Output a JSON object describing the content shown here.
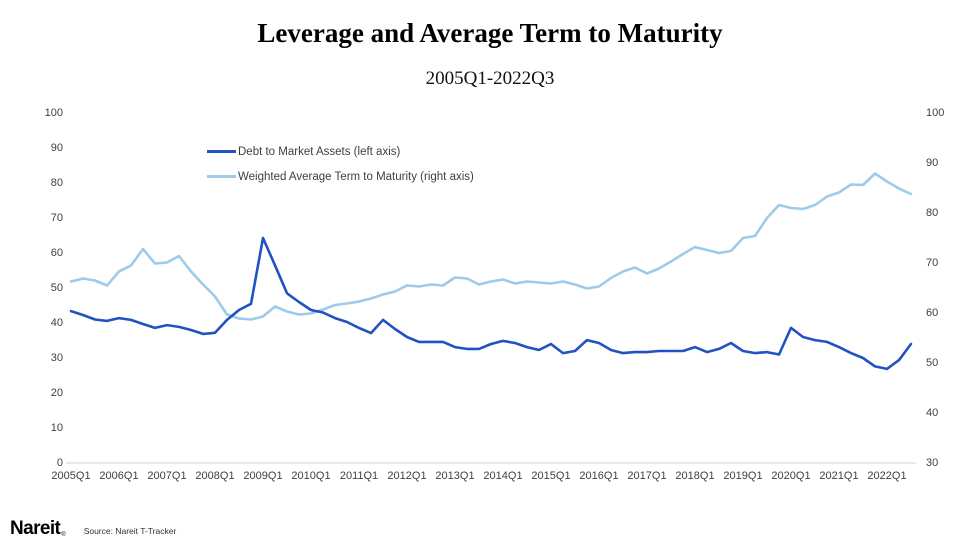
{
  "title": "Leverage and Average Term to Maturity",
  "subtitle": "2005Q1-2022Q3",
  "legend": {
    "items": [
      {
        "label": "Debt to Market Assets (left axis)",
        "color": "#2151c2"
      },
      {
        "label": "Weighted Average Term to Maturity (right axis)",
        "color": "#9dcbe9"
      }
    ]
  },
  "footer": {
    "logo_text": "Nareit",
    "registered_mark": "®",
    "source_text": "Source: Nareit T-Tracker"
  },
  "chart_data": {
    "type": "line",
    "title": "Leverage and Average Term to Maturity",
    "subtitle": "2005Q1-2022Q3",
    "x_start": "2005Q1",
    "x_end": "2022Q3",
    "x_interval": "quarter",
    "x_tick_labels": [
      "2005Q1",
      "2006Q1",
      "2007Q1",
      "2008Q1",
      "2009Q1",
      "2010Q1",
      "2011Q1",
      "2012Q1",
      "2013Q1",
      "2014Q1",
      "2015Q1",
      "2016Q1",
      "2017Q1",
      "2018Q1",
      "2019Q1",
      "2020Q1",
      "2021Q1",
      "2022Q1"
    ],
    "left_axis": {
      "ticks": [
        100,
        90,
        80,
        70,
        60,
        50,
        40,
        30,
        20,
        10,
        0
      ],
      "min": 0,
      "max": 100
    },
    "right_axis": {
      "ticks": [
        100,
        90,
        80,
        70,
        60,
        50,
        40,
        30
      ],
      "min": 30,
      "max": 100
    },
    "grid": false,
    "legend_position": "top-left-inside",
    "series": [
      {
        "name": "Debt to Market Assets (left axis)",
        "axis": "left",
        "color": "#2151c2",
        "values": [
          43.4,
          42.3,
          41.0,
          40.6,
          41.4,
          40.9,
          39.7,
          38.6,
          39.4,
          38.9,
          38.0,
          36.9,
          37.2,
          40.9,
          43.7,
          45.5,
          64.3,
          56.5,
          48.5,
          46.0,
          43.7,
          43.0,
          41.4,
          40.3,
          38.6,
          37.1,
          40.9,
          38.3,
          36.0,
          34.6,
          34.6,
          34.6,
          33.1,
          32.6,
          32.6,
          34.0,
          34.9,
          34.3,
          33.1,
          32.3,
          34.0,
          31.4,
          32.0,
          35.1,
          34.3,
          32.3,
          31.4,
          31.7,
          31.7,
          32.0,
          32.0,
          32.0,
          33.1,
          31.7,
          32.6,
          34.3,
          32.0,
          31.4,
          31.7,
          31.0,
          38.6,
          36.0,
          35.1,
          34.6,
          33.1,
          31.4,
          30.0,
          27.6,
          26.9,
          29.4,
          34.0
        ]
      },
      {
        "name": "Weighted Average Term to Maturity (right axis)",
        "axis": "right",
        "color": "#9dcbe9",
        "values": [
          66.3,
          66.9,
          66.5,
          65.5,
          68.3,
          69.5,
          72.8,
          69.9,
          70.1,
          71.4,
          68.3,
          65.7,
          63.3,
          59.7,
          58.9,
          58.7,
          59.3,
          61.3,
          60.3,
          59.7,
          59.9,
          60.7,
          61.6,
          61.9,
          62.3,
          62.9,
          63.7,
          64.3,
          65.5,
          65.3,
          65.7,
          65.5,
          67.1,
          66.9,
          65.7,
          66.3,
          66.7,
          65.9,
          66.3,
          66.1,
          65.9,
          66.3,
          65.7,
          64.9,
          65.3,
          67.0,
          68.3,
          69.1,
          67.9,
          68.9,
          70.3,
          71.8,
          73.2,
          72.6,
          72.0,
          72.4,
          75.0,
          75.4,
          79.0,
          81.6,
          81.0,
          80.8,
          81.6,
          83.3,
          84.1,
          85.7,
          85.6,
          87.9,
          86.3,
          84.9,
          83.8
        ]
      }
    ]
  }
}
